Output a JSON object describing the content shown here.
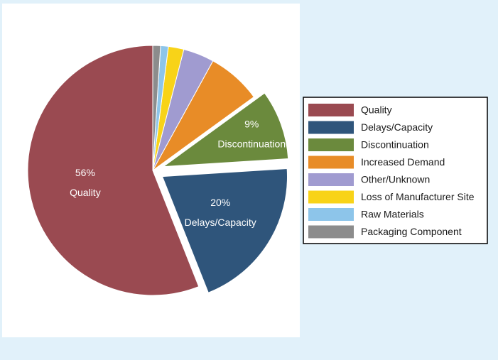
{
  "chart_data": {
    "type": "pie",
    "categories": [
      "Quality",
      "Delays/Capacity",
      "Discontinuation",
      "Increased Demand",
      "Other/Unknown",
      "Loss of Manufacturer Site",
      "Raw Materials",
      "Packaging Component"
    ],
    "values": [
      56,
      20,
      9,
      7,
      4,
      2,
      1,
      1
    ],
    "value_labels": [
      "56%",
      "20%",
      "9%",
      null,
      null,
      null,
      null,
      null
    ],
    "colors": [
      "#9a4a51",
      "#2f557b",
      "#6b8a3d",
      "#e88c27",
      "#a09bd0",
      "#f8d318",
      "#8dc5ea",
      "#8c8c8c"
    ],
    "legend": "right"
  }
}
